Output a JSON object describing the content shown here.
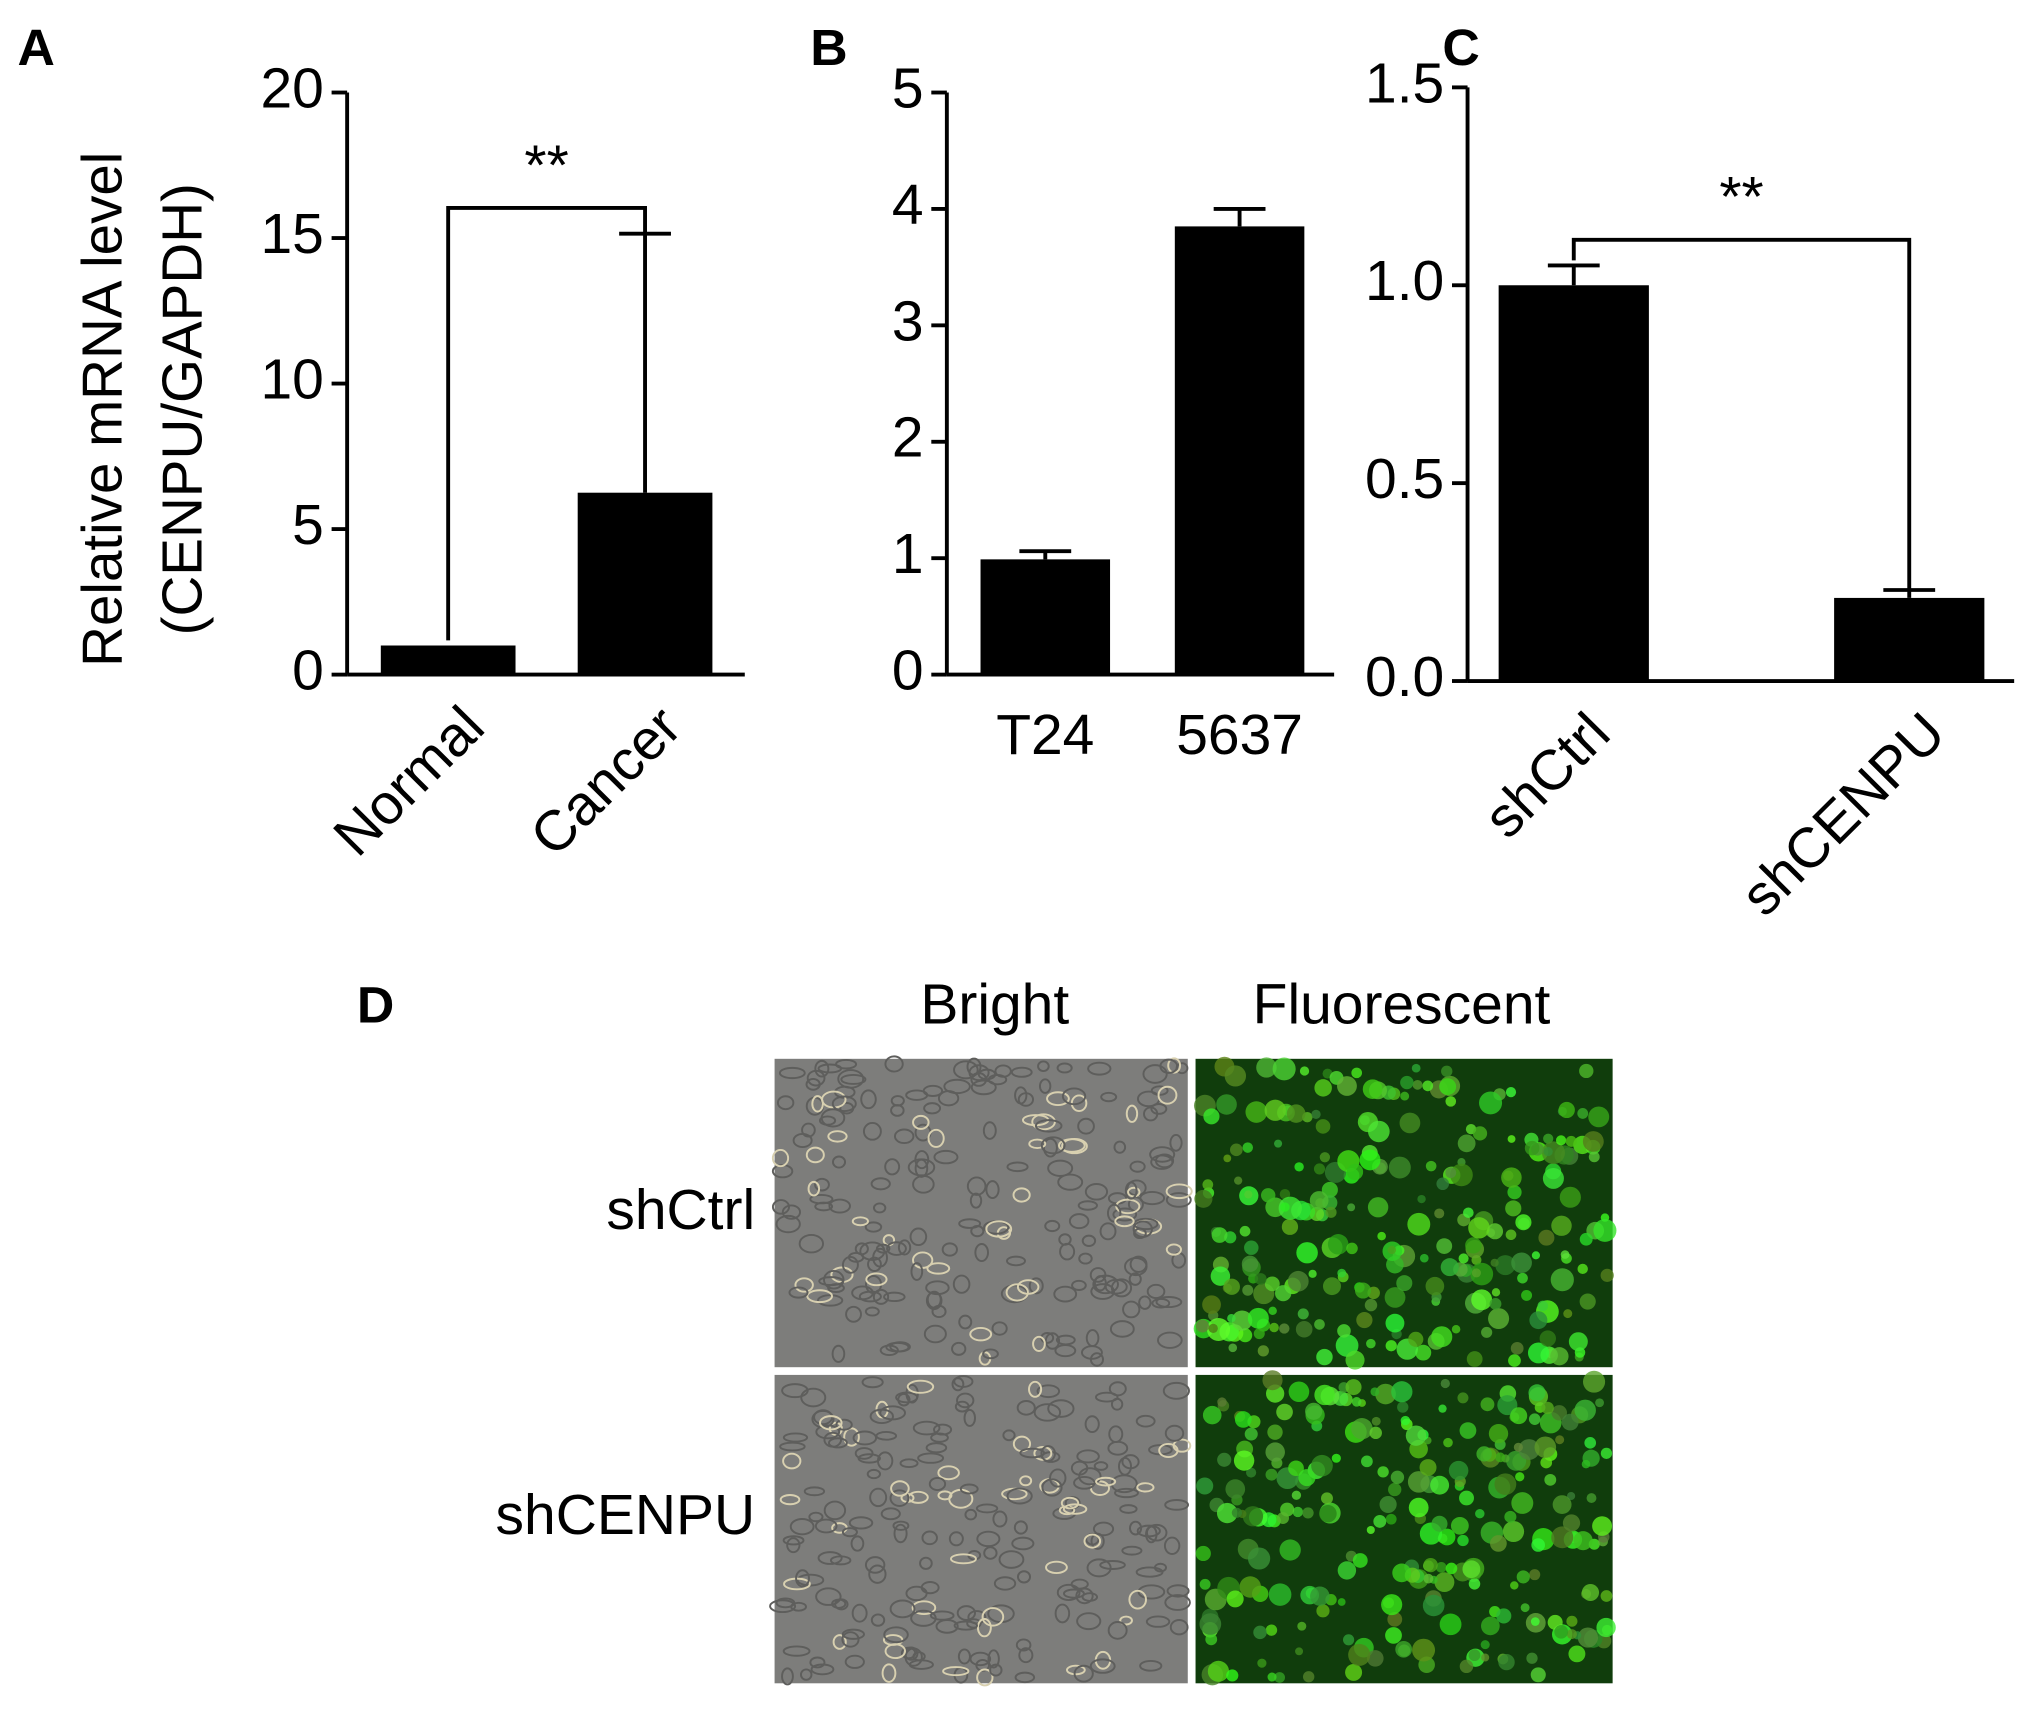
{
  "chart_data": [
    {
      "type": "bar",
      "panel": "A",
      "ylabel": [
        "Relative mRNA level",
        "(CENPU/GAPDH)"
      ],
      "categories": [
        "Normal",
        "Cancer"
      ],
      "values": [
        1.0,
        6.25
      ],
      "errors": [
        null,
        8.9
      ],
      "color": "#000000",
      "ylim": [
        0,
        20
      ],
      "yticks": [
        0,
        5,
        10,
        15,
        20
      ],
      "significance": "**"
    },
    {
      "type": "bar",
      "panel": "B",
      "categories": [
        "T24",
        "5637"
      ],
      "values": [
        0.99,
        3.85
      ],
      "errors": [
        0.07,
        0.15
      ],
      "color": "#000000",
      "ylim": [
        0,
        5
      ],
      "yticks": [
        0,
        1,
        2,
        3,
        4,
        5
      ]
    },
    {
      "type": "bar",
      "panel": "C",
      "categories": [
        "shCtrl",
        "shCENPU"
      ],
      "values": [
        1.0,
        0.21
      ],
      "errors": [
        0.05,
        0.02
      ],
      "color": "#000000",
      "ylim": [
        0,
        1.5
      ],
      "yticks": [
        {
          "value": 0,
          "label": "0.0"
        },
        {
          "value": 0.5,
          "label": "0.5"
        },
        {
          "value": 1,
          "label": "1.0"
        },
        1.5
      ],
      "significance": "**"
    }
  ],
  "panel_d": {
    "panel": "D",
    "columns": [
      "Bright",
      "Fluorescent"
    ],
    "rows": [
      "shCtrl",
      "shCENPU"
    ]
  }
}
